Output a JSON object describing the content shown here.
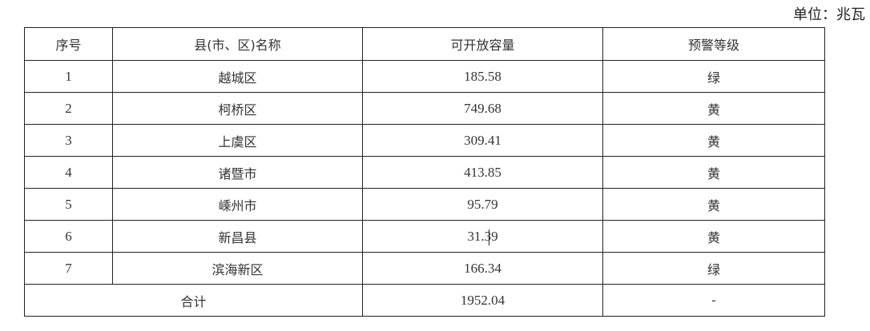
{
  "unit_label": "单位：兆瓦",
  "table": {
    "headers": [
      "序号",
      "县(市、区)名称",
      "可开放容量",
      "预警等级"
    ],
    "rows": [
      {
        "index": "1",
        "name": "越城区",
        "capacity": "185.58",
        "level": "绿"
      },
      {
        "index": "2",
        "name": "柯桥区",
        "capacity": "749.68",
        "level": "黄"
      },
      {
        "index": "3",
        "name": "上虞区",
        "capacity": "309.41",
        "level": "黄"
      },
      {
        "index": "4",
        "name": "诸暨市",
        "capacity": "413.85",
        "level": "黄"
      },
      {
        "index": "5",
        "name": "嵊州市",
        "capacity": "95.79",
        "level": "黄"
      },
      {
        "index": "6",
        "name": "新昌县",
        "capacity": "31.39",
        "level": "黄"
      },
      {
        "index": "7",
        "name": "滨海新区",
        "capacity": "166.34",
        "level": "绿"
      }
    ],
    "total": {
      "label": "合计",
      "capacity": "1952.04",
      "level": "-"
    }
  }
}
